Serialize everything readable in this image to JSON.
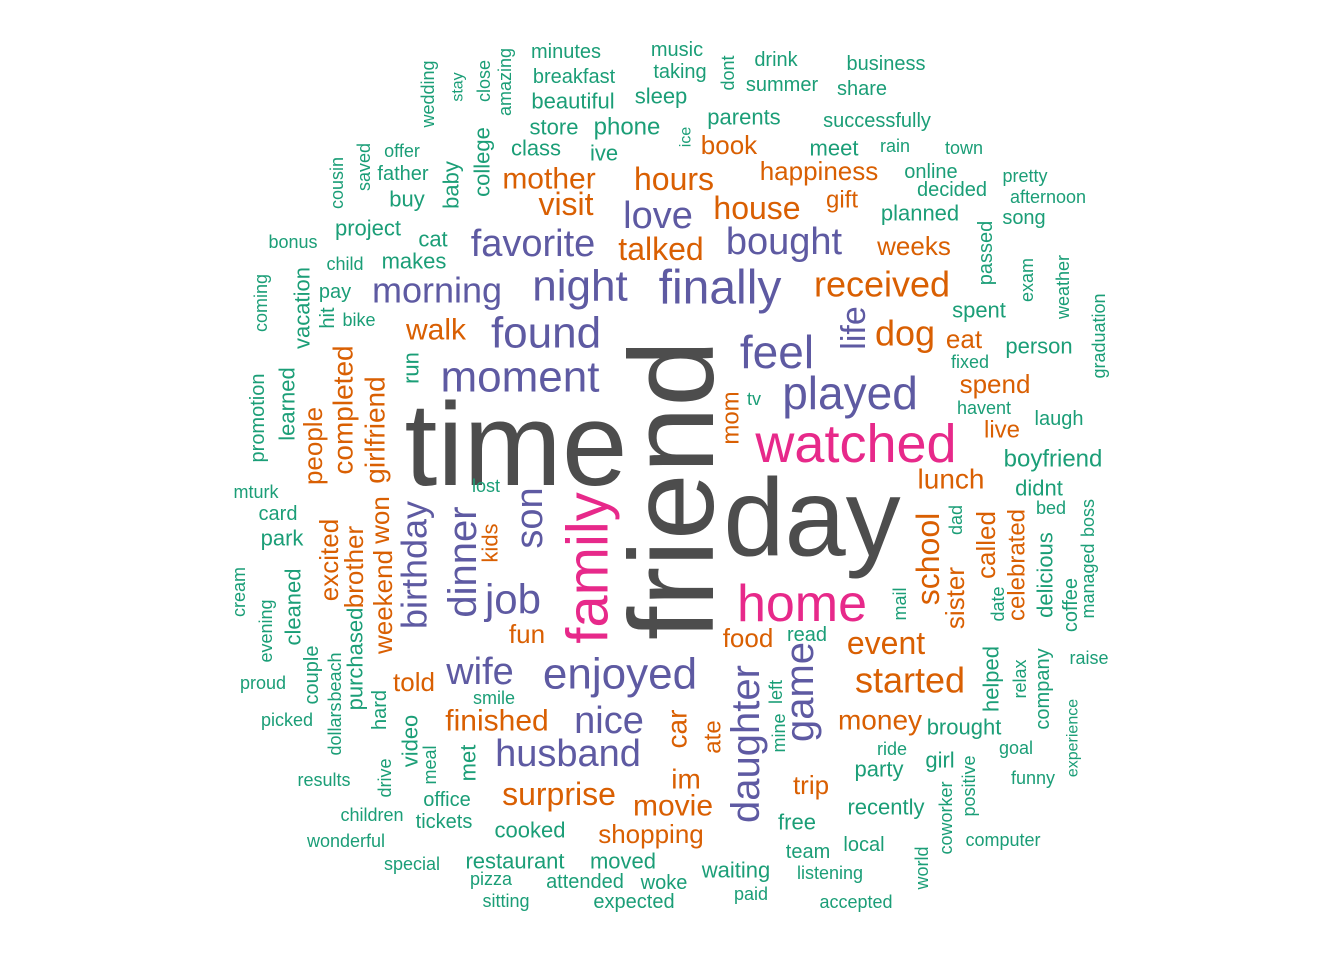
{
  "colors": {
    "largest": "#4d4d4d",
    "large": "#e7298a",
    "medium_large": "#5e5aa2",
    "medium": "#d95f02",
    "small": "#1b9e77"
  },
  "words": [
    {
      "text": "time",
      "tier": "largest"
    },
    {
      "text": "friend",
      "tier": "largest"
    },
    {
      "text": "day",
      "tier": "largest"
    },
    {
      "text": "family",
      "tier": "large"
    },
    {
      "text": "watched",
      "tier": "large"
    },
    {
      "text": "home",
      "tier": "large"
    },
    {
      "text": "finally",
      "tier": "medium_large"
    },
    {
      "text": "night",
      "tier": "medium_large"
    },
    {
      "text": "found",
      "tier": "medium_large"
    },
    {
      "text": "moment",
      "tier": "medium_large"
    },
    {
      "text": "feel",
      "tier": "medium_large"
    },
    {
      "text": "played",
      "tier": "medium_large"
    },
    {
      "text": "enjoyed",
      "tier": "medium_large"
    },
    {
      "text": "husband",
      "tier": "medium_large"
    },
    {
      "text": "nice",
      "tier": "medium_large"
    },
    {
      "text": "wife",
      "tier": "medium_large"
    },
    {
      "text": "daughter",
      "tier": "medium_large"
    },
    {
      "text": "game",
      "tier": "medium_large"
    },
    {
      "text": "job",
      "tier": "medium_large"
    },
    {
      "text": "son",
      "tier": "medium_large"
    },
    {
      "text": "dinner",
      "tier": "medium_large"
    },
    {
      "text": "birthday",
      "tier": "medium_large"
    },
    {
      "text": "favorite",
      "tier": "medium_large"
    },
    {
      "text": "bought",
      "tier": "medium_large"
    },
    {
      "text": "love",
      "tier": "medium_large"
    },
    {
      "text": "morning",
      "tier": "medium_large"
    },
    {
      "text": "life",
      "tier": "medium_large"
    },
    {
      "text": "received",
      "tier": "medium"
    },
    {
      "text": "dog",
      "tier": "medium"
    },
    {
      "text": "started",
      "tier": "medium"
    },
    {
      "text": "event",
      "tier": "medium"
    },
    {
      "text": "school",
      "tier": "medium"
    },
    {
      "text": "surprise",
      "tier": "medium"
    },
    {
      "text": "finished",
      "tier": "medium"
    },
    {
      "text": "movie",
      "tier": "medium"
    },
    {
      "text": "money",
      "tier": "medium"
    },
    {
      "text": "hours",
      "tier": "medium"
    },
    {
      "text": "mother",
      "tier": "medium"
    },
    {
      "text": "visit",
      "tier": "medium"
    },
    {
      "text": "house",
      "tier": "medium"
    },
    {
      "text": "talked",
      "tier": "medium"
    },
    {
      "text": "happiness",
      "tier": "medium"
    },
    {
      "text": "book",
      "tier": "medium"
    },
    {
      "text": "gift",
      "tier": "medium"
    },
    {
      "text": "weeks",
      "tier": "medium"
    },
    {
      "text": "walk",
      "tier": "medium"
    },
    {
      "text": "eat",
      "tier": "medium"
    },
    {
      "text": "spend",
      "tier": "medium"
    },
    {
      "text": "live",
      "tier": "medium"
    },
    {
      "text": "lunch",
      "tier": "medium"
    },
    {
      "text": "mom",
      "tier": "medium"
    },
    {
      "text": "food",
      "tier": "medium"
    },
    {
      "text": "fun",
      "tier": "medium"
    },
    {
      "text": "told",
      "tier": "medium"
    },
    {
      "text": "shopping",
      "tier": "medium"
    },
    {
      "text": "trip",
      "tier": "medium"
    },
    {
      "text": "car",
      "tier": "medium"
    },
    {
      "text": "im",
      "tier": "medium"
    },
    {
      "text": "ate",
      "tier": "medium"
    },
    {
      "text": "kids",
      "tier": "medium"
    },
    {
      "text": "girlfriend",
      "tier": "medium"
    },
    {
      "text": "completed",
      "tier": "medium"
    },
    {
      "text": "people",
      "tier": "medium"
    },
    {
      "text": "excited",
      "tier": "medium"
    },
    {
      "text": "brother",
      "tier": "medium"
    },
    {
      "text": "won",
      "tier": "medium"
    },
    {
      "text": "weekend",
      "tier": "medium"
    },
    {
      "text": "sister",
      "tier": "medium"
    },
    {
      "text": "called",
      "tier": "medium"
    },
    {
      "text": "celebrated",
      "tier": "medium"
    },
    {
      "text": "minutes",
      "tier": "small"
    },
    {
      "text": "music",
      "tier": "small"
    },
    {
      "text": "drink",
      "tier": "small"
    },
    {
      "text": "business",
      "tier": "small"
    },
    {
      "text": "breakfast",
      "tier": "small"
    },
    {
      "text": "taking",
      "tier": "small"
    },
    {
      "text": "summer",
      "tier": "small"
    },
    {
      "text": "share",
      "tier": "small"
    },
    {
      "text": "beautiful",
      "tier": "small"
    },
    {
      "text": "sleep",
      "tier": "small"
    },
    {
      "text": "parents",
      "tier": "small"
    },
    {
      "text": "successfully",
      "tier": "small"
    },
    {
      "text": "store",
      "tier": "small"
    },
    {
      "text": "phone",
      "tier": "small"
    },
    {
      "text": "class",
      "tier": "small"
    },
    {
      "text": "ive",
      "tier": "small"
    },
    {
      "text": "meet",
      "tier": "small"
    },
    {
      "text": "rain",
      "tier": "small"
    },
    {
      "text": "town",
      "tier": "small"
    },
    {
      "text": "offer",
      "tier": "small"
    },
    {
      "text": "father",
      "tier": "small"
    },
    {
      "text": "online",
      "tier": "small"
    },
    {
      "text": "decided",
      "tier": "small"
    },
    {
      "text": "pretty",
      "tier": "small"
    },
    {
      "text": "afternoon",
      "tier": "small"
    },
    {
      "text": "buy",
      "tier": "small"
    },
    {
      "text": "planned",
      "tier": "small"
    },
    {
      "text": "song",
      "tier": "small"
    },
    {
      "text": "project",
      "tier": "small"
    },
    {
      "text": "bonus",
      "tier": "small"
    },
    {
      "text": "cat",
      "tier": "small"
    },
    {
      "text": "child",
      "tier": "small"
    },
    {
      "text": "makes",
      "tier": "small"
    },
    {
      "text": "pay",
      "tier": "small"
    },
    {
      "text": "hit",
      "tier": "small"
    },
    {
      "text": "bike",
      "tier": "small"
    },
    {
      "text": "spent",
      "tier": "small"
    },
    {
      "text": "person",
      "tier": "small"
    },
    {
      "text": "fixed",
      "tier": "small"
    },
    {
      "text": "tv",
      "tier": "small"
    },
    {
      "text": "havent",
      "tier": "small"
    },
    {
      "text": "laugh",
      "tier": "small"
    },
    {
      "text": "boyfriend",
      "tier": "small"
    },
    {
      "text": "didnt",
      "tier": "small"
    },
    {
      "text": "bed",
      "tier": "small"
    },
    {
      "text": "mturk",
      "tier": "small"
    },
    {
      "text": "card",
      "tier": "small"
    },
    {
      "text": "park",
      "tier": "small"
    },
    {
      "text": "lost",
      "tier": "small"
    },
    {
      "text": "read",
      "tier": "small"
    },
    {
      "text": "raise",
      "tier": "small"
    },
    {
      "text": "proud",
      "tier": "small"
    },
    {
      "text": "picked",
      "tier": "small"
    },
    {
      "text": "smile",
      "tier": "small"
    },
    {
      "text": "brought",
      "tier": "small"
    },
    {
      "text": "ride",
      "tier": "small"
    },
    {
      "text": "goal",
      "tier": "small"
    },
    {
      "text": "girl",
      "tier": "small"
    },
    {
      "text": "party",
      "tier": "small"
    },
    {
      "text": "funny",
      "tier": "small"
    },
    {
      "text": "results",
      "tier": "small"
    },
    {
      "text": "office",
      "tier": "small"
    },
    {
      "text": "recently",
      "tier": "small"
    },
    {
      "text": "children",
      "tier": "small"
    },
    {
      "text": "tickets",
      "tier": "small"
    },
    {
      "text": "cooked",
      "tier": "small"
    },
    {
      "text": "free",
      "tier": "small"
    },
    {
      "text": "wonderful",
      "tier": "small"
    },
    {
      "text": "computer",
      "tier": "small"
    },
    {
      "text": "team",
      "tier": "small"
    },
    {
      "text": "local",
      "tier": "small"
    },
    {
      "text": "special",
      "tier": "small"
    },
    {
      "text": "restaurant",
      "tier": "small"
    },
    {
      "text": "moved",
      "tier": "small"
    },
    {
      "text": "waiting",
      "tier": "small"
    },
    {
      "text": "listening",
      "tier": "small"
    },
    {
      "text": "pizza",
      "tier": "small"
    },
    {
      "text": "attended",
      "tier": "small"
    },
    {
      "text": "woke",
      "tier": "small"
    },
    {
      "text": "paid",
      "tier": "small"
    },
    {
      "text": "sitting",
      "tier": "small"
    },
    {
      "text": "expected",
      "tier": "small"
    },
    {
      "text": "accepted",
      "tier": "small"
    },
    {
      "text": "wedding",
      "tier": "small"
    },
    {
      "text": "stay",
      "tier": "small"
    },
    {
      "text": "close",
      "tier": "small"
    },
    {
      "text": "amazing",
      "tier": "small"
    },
    {
      "text": "dont",
      "tier": "small"
    },
    {
      "text": "ice",
      "tier": "small"
    },
    {
      "text": "college",
      "tier": "small"
    },
    {
      "text": "baby",
      "tier": "small"
    },
    {
      "text": "saved",
      "tier": "small"
    },
    {
      "text": "cousin",
      "tier": "small"
    },
    {
      "text": "passed",
      "tier": "small"
    },
    {
      "text": "exam",
      "tier": "small"
    },
    {
      "text": "weather",
      "tier": "small"
    },
    {
      "text": "graduation",
      "tier": "small"
    },
    {
      "text": "coming",
      "tier": "small"
    },
    {
      "text": "vacation",
      "tier": "small"
    },
    {
      "text": "run",
      "tier": "small"
    },
    {
      "text": "promotion",
      "tier": "small"
    },
    {
      "text": "learned",
      "tier": "small"
    },
    {
      "text": "cream",
      "tier": "small"
    },
    {
      "text": "evening",
      "tier": "small"
    },
    {
      "text": "cleaned",
      "tier": "small"
    },
    {
      "text": "couple",
      "tier": "small"
    },
    {
      "text": "beach",
      "tier": "small"
    },
    {
      "text": "purchased",
      "tier": "small"
    },
    {
      "text": "hard",
      "tier": "small"
    },
    {
      "text": "dollars",
      "tier": "small"
    },
    {
      "text": "video",
      "tier": "small"
    },
    {
      "text": "meal",
      "tier": "small"
    },
    {
      "text": "met",
      "tier": "small"
    },
    {
      "text": "drive",
      "tier": "small"
    },
    {
      "text": "left",
      "tier": "small"
    },
    {
      "text": "mine",
      "tier": "small"
    },
    {
      "text": "mail",
      "tier": "small"
    },
    {
      "text": "dad",
      "tier": "small"
    },
    {
      "text": "date",
      "tier": "small"
    },
    {
      "text": "helped",
      "tier": "small"
    },
    {
      "text": "relax",
      "tier": "small"
    },
    {
      "text": "delicious",
      "tier": "small"
    },
    {
      "text": "company",
      "tier": "small"
    },
    {
      "text": "coffee",
      "tier": "small"
    },
    {
      "text": "managed",
      "tier": "small"
    },
    {
      "text": "boss",
      "tier": "small"
    },
    {
      "text": "experience",
      "tier": "small"
    },
    {
      "text": "positive",
      "tier": "small"
    },
    {
      "text": "coworker",
      "tier": "small"
    },
    {
      "text": "world",
      "tier": "small"
    }
  ]
}
